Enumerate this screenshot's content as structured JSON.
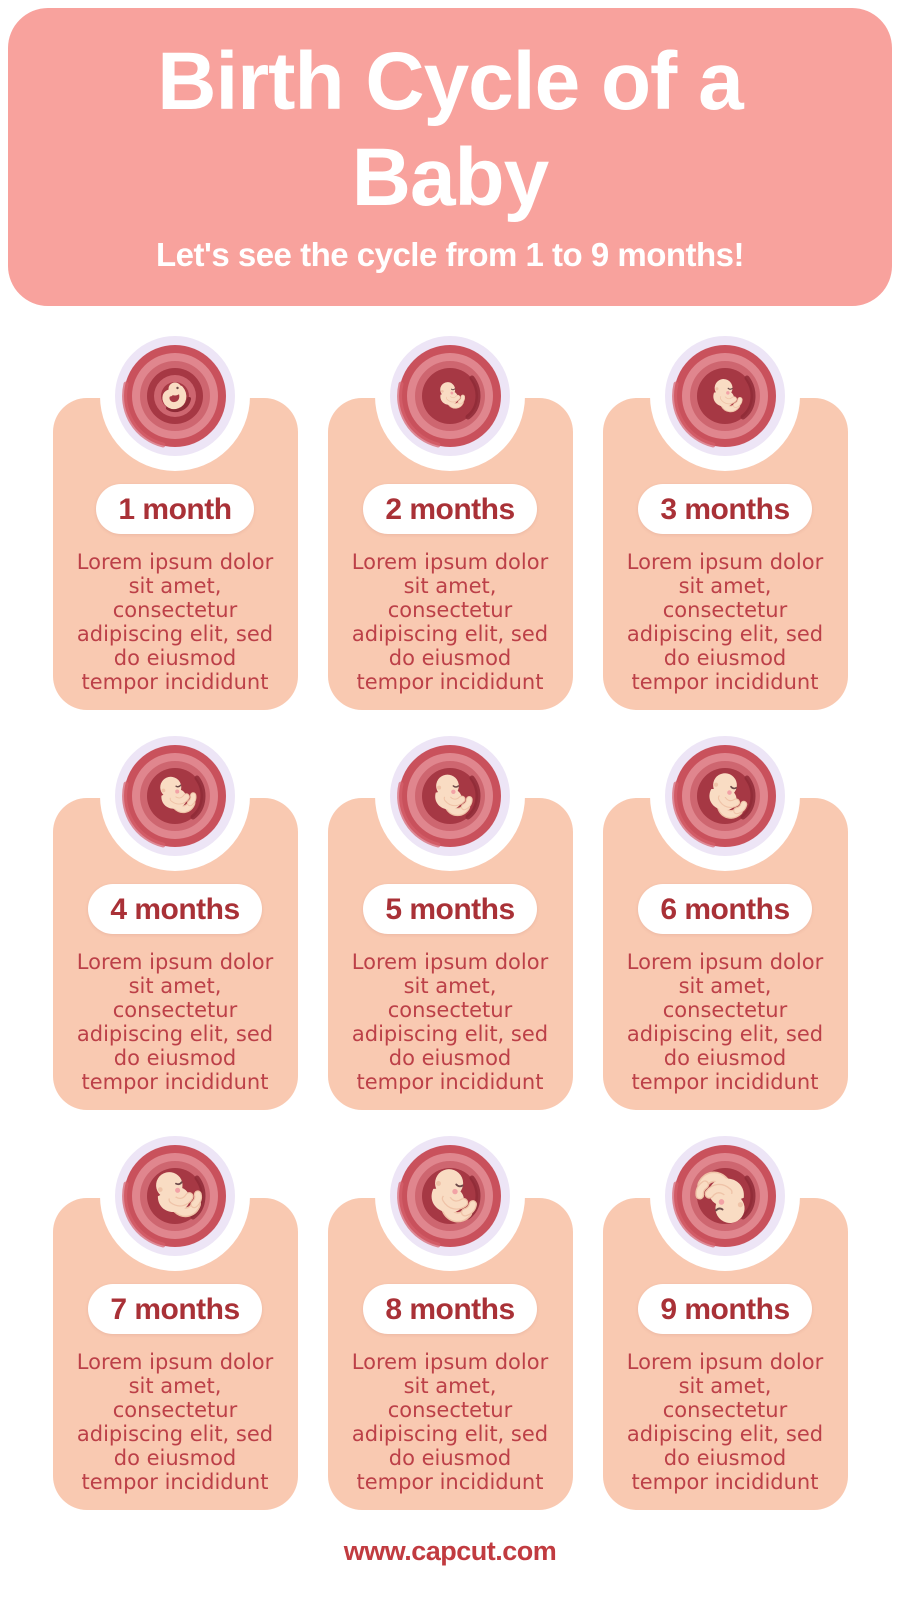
{
  "header": {
    "title": "Birth Cycle of a\nBaby",
    "subtitle": "Let's see the cycle from 1 to 9 months!"
  },
  "cards": [
    {
      "label": "1 month",
      "body": "Lorem ipsum dolor\nsit amet,\nconsectetur\nadipiscing elit, sed\ndo eiusmod\ntempor incididunt",
      "illustration": {
        "name": "womb-embryo-icon-month-1",
        "variant": "embryo",
        "scale": 1,
        "rotate": 0
      }
    },
    {
      "label": "2 months",
      "body": "Lorem ipsum dolor\nsit amet,\nconsectetur\nadipiscing elit, sed\ndo eiusmod\ntempor incididunt",
      "illustration": {
        "name": "womb-fetus-icon-month-2",
        "variant": "fetus",
        "scale": 0.55,
        "rotate": -6
      }
    },
    {
      "label": "3 months",
      "body": "Lorem ipsum dolor\nsit amet,\nconsectetur\nadipiscing elit, sed\ndo eiusmod\ntempor incididunt",
      "illustration": {
        "name": "womb-fetus-icon-month-3",
        "variant": "fetus",
        "scale": 0.66,
        "rotate": 4
      }
    },
    {
      "label": "4 months",
      "body": "Lorem ipsum dolor\nsit amet,\nconsectetur\nadipiscing elit, sed\ndo eiusmod\ntempor incididunt",
      "illustration": {
        "name": "womb-fetus-icon-month-4",
        "variant": "fetus",
        "scale": 0.78,
        "rotate": -12
      }
    },
    {
      "label": "5 months",
      "body": "Lorem ipsum dolor\nsit amet,\nconsectetur\nadipiscing elit, sed\ndo eiusmod\ntempor incididunt",
      "illustration": {
        "name": "womb-fetus-icon-month-5",
        "variant": "fetus",
        "scale": 0.84,
        "rotate": 0
      }
    },
    {
      "label": "6 months",
      "body": "Lorem ipsum dolor\nsit amet,\nconsectetur\nadipiscing elit, sed\ndo eiusmod\ntempor incididunt",
      "illustration": {
        "name": "womb-fetus-icon-month-6",
        "variant": "fetus",
        "scale": 0.88,
        "rotate": 14
      }
    },
    {
      "label": "7 months",
      "body": "Lorem ipsum dolor\nsit amet,\nconsectetur\nadipiscing elit, sed\ndo eiusmod\ntempor incididunt",
      "illustration": {
        "name": "womb-fetus-icon-month-7",
        "variant": "fetus",
        "scale": 0.98,
        "rotate": -14
      }
    },
    {
      "label": "8 months",
      "body": "Lorem ipsum dolor\nsit amet,\nconsectetur\nadipiscing elit, sed\ndo eiusmod\ntempor incididunt",
      "illustration": {
        "name": "womb-fetus-icon-month-8",
        "variant": "fetus",
        "scale": 1.04,
        "rotate": 10
      }
    },
    {
      "label": "9 months",
      "body": "Lorem ipsum dolor\nsit amet,\nconsectetur\nadipiscing elit, sed\ndo eiusmod\ntempor incididunt",
      "illustration": {
        "name": "womb-fetus-icon-month-9",
        "variant": "fetus",
        "scale": 1.08,
        "rotate": 172
      }
    }
  ],
  "footer": {
    "website": "www.capcut.com"
  },
  "colors": {
    "header_bg": "#F8A29D",
    "header_text": "#FFFFFF",
    "card_bg": "#F9C9B1",
    "pill_bg": "#FFFFFF",
    "pill_text": "#A93137",
    "body_text": "#BC4048",
    "footer_text": "#C13B40",
    "lavender": "#EDE5F6",
    "skin": "#F9DCC3",
    "skin_shade": "#EFC3A8",
    "cheek": "#F2A2A6",
    "eye": "#6E4A4A",
    "womb": {
      "outer": "#C9515C",
      "sheen": "#D5616C",
      "light": "#E0868E",
      "mid": "#CE6670",
      "deep": "#A63844",
      "deepest": "#8E2A36"
    }
  }
}
